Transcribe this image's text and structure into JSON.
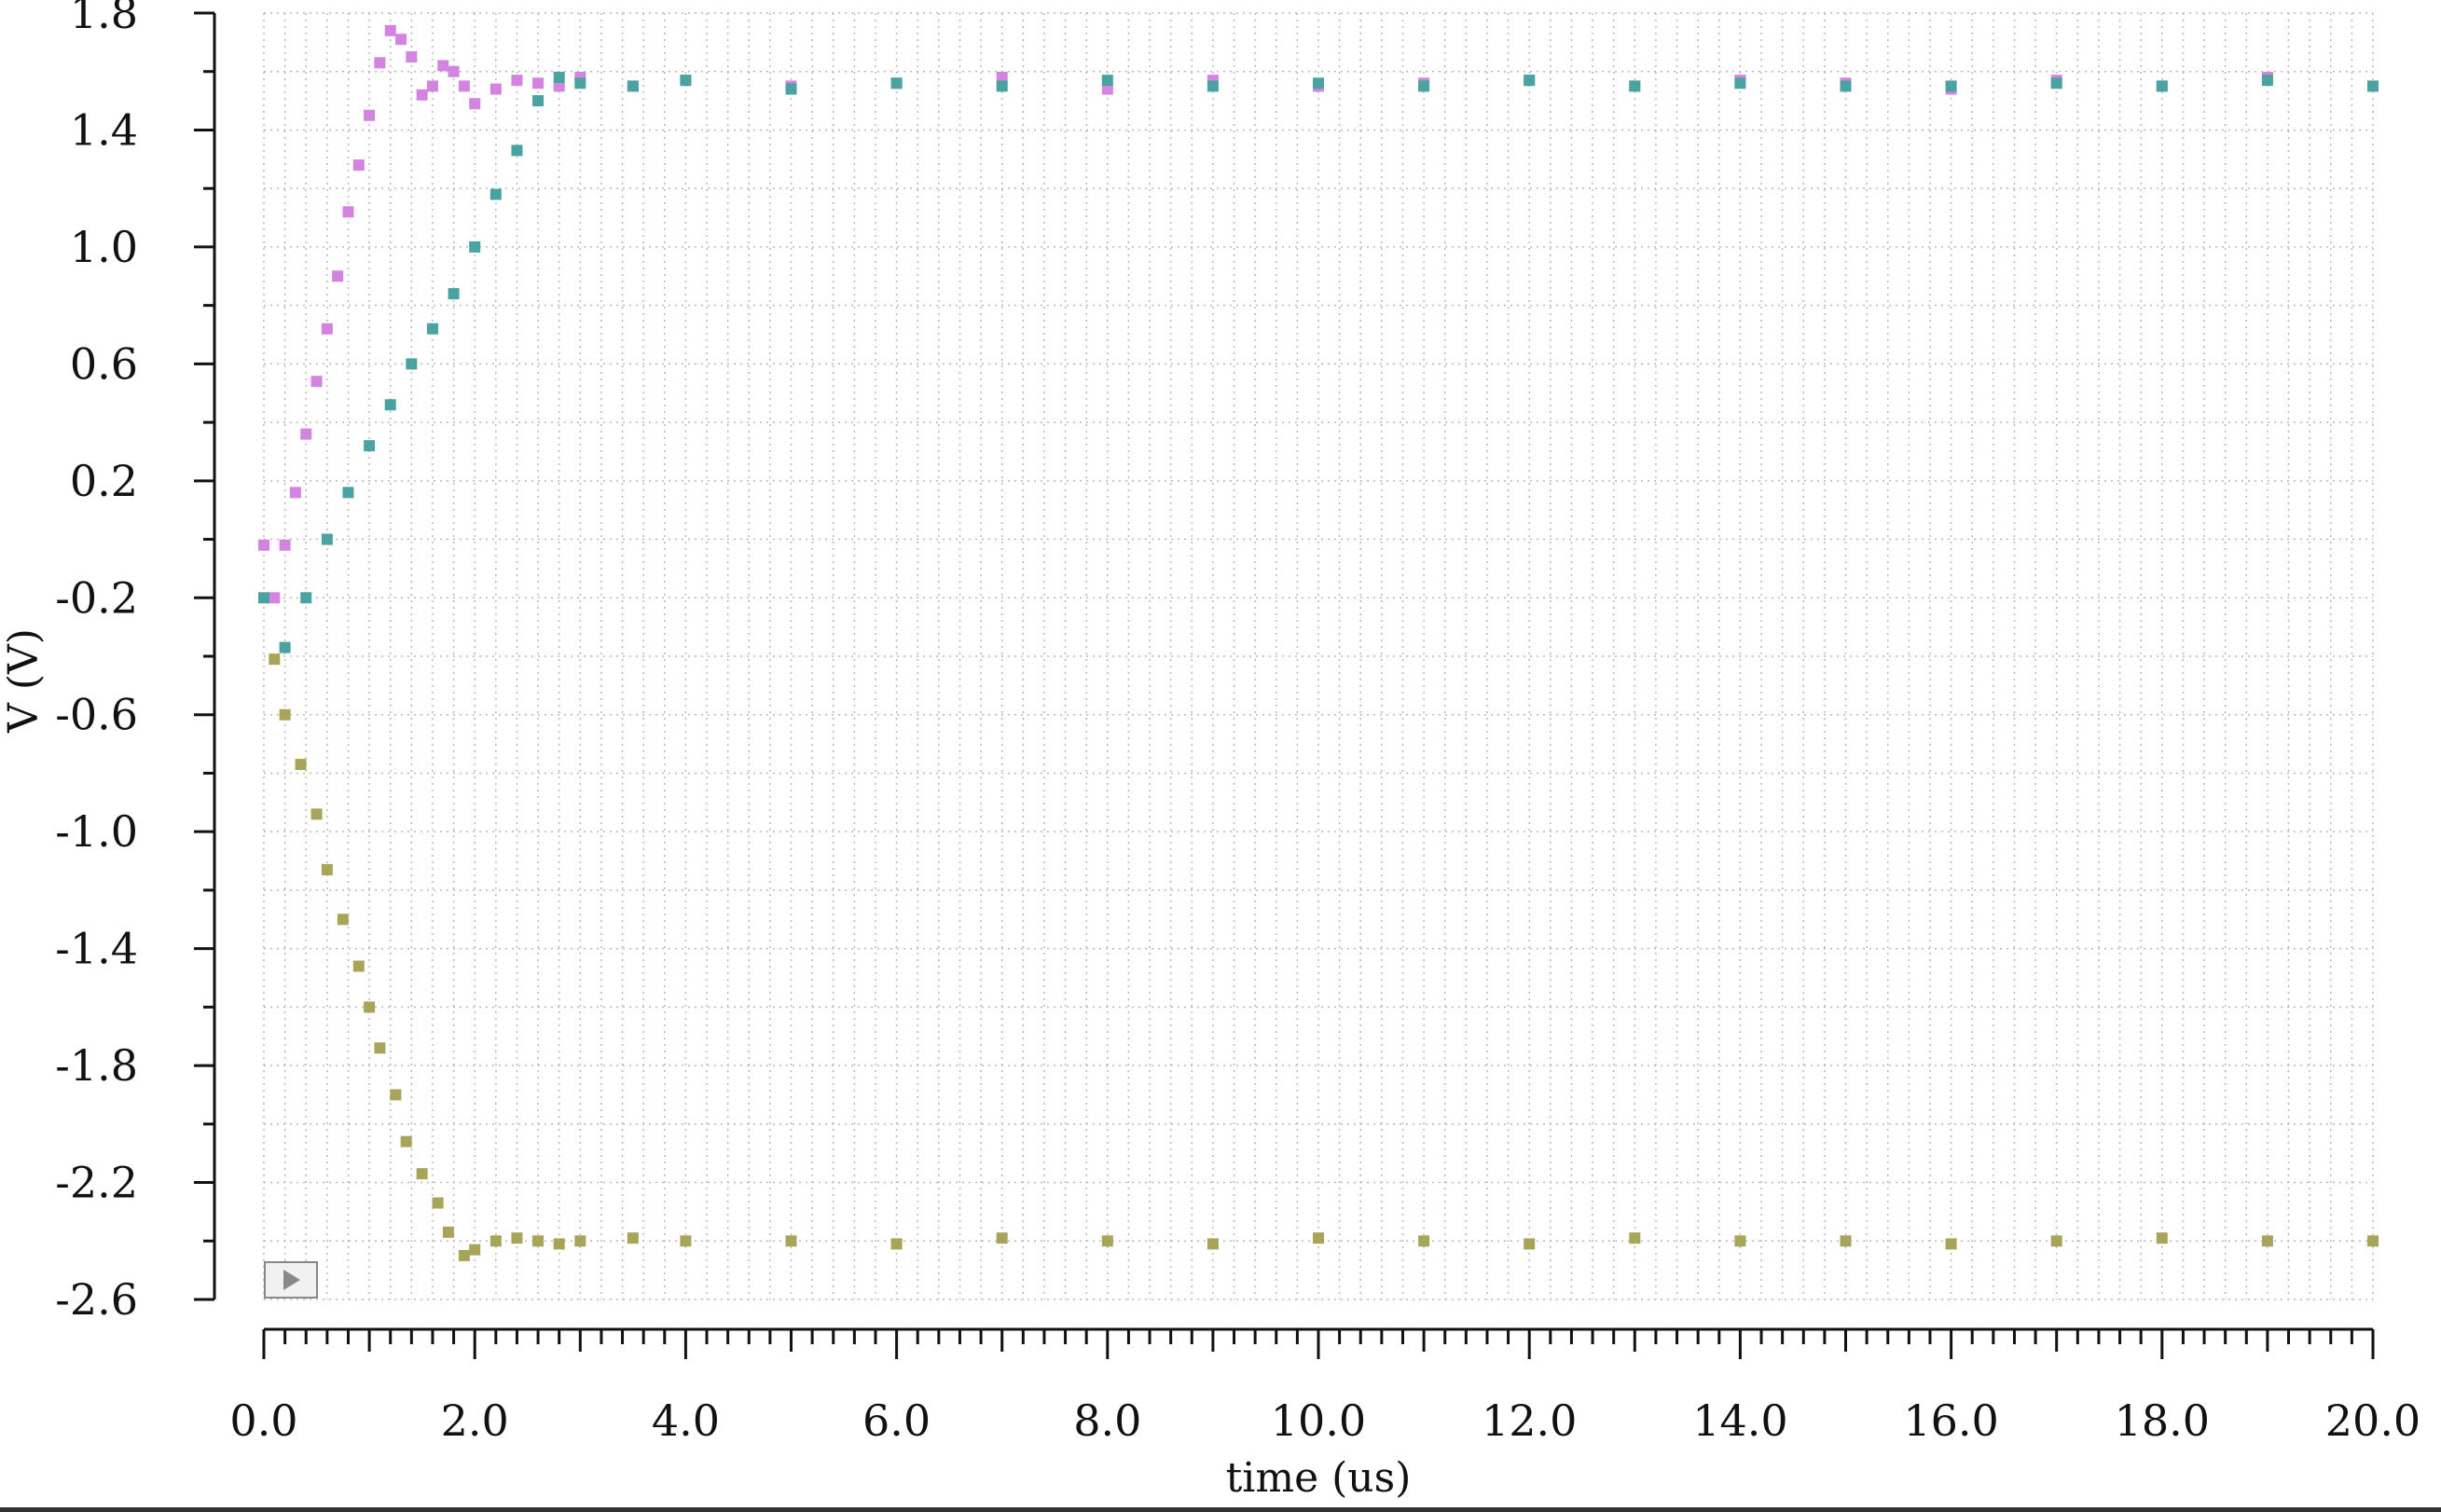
{
  "chart_data": {
    "type": "scatter",
    "xlabel": "time (us)",
    "ylabel": "V (V)",
    "xlim": [
      0,
      20
    ],
    "ylim": [
      -2.6,
      1.8
    ],
    "x_ticks": [
      0,
      2,
      4,
      6,
      8,
      10,
      12,
      14,
      16,
      18,
      20
    ],
    "x_tick_labels": [
      "0.0",
      "2.0",
      "4.0",
      "6.0",
      "8.0",
      "10.0",
      "12.0",
      "14.0",
      "16.0",
      "18.0",
      "20.0"
    ],
    "y_ticks": [
      1.8,
      1.4,
      1.0,
      0.6,
      0.2,
      -0.2,
      -0.6,
      -1.0,
      -1.4,
      -1.8,
      -2.2,
      -2.6
    ],
    "y_tick_labels": [
      "1.8",
      "1.4",
      "1.0",
      "0.6",
      "0.2",
      "-0.2",
      "-0.6",
      "-1.0",
      "-1.4",
      "-1.8",
      "-2.2",
      "-2.6"
    ],
    "grid": true,
    "legend": "none",
    "series": [
      {
        "color": "#d384e0",
        "marker": "square",
        "x": [
          0.0,
          0.1,
          0.2,
          0.3,
          0.4,
          0.5,
          0.6,
          0.7,
          0.8,
          0.9,
          1.0,
          1.1,
          1.2,
          1.3,
          1.4,
          1.5,
          1.6,
          1.7,
          1.8,
          1.9,
          2.0,
          2.2,
          2.4,
          2.6,
          2.8,
          3.0,
          3.5,
          4.0,
          5.0,
          6.0,
          7.0,
          8.0,
          9.0,
          10.0,
          11.0,
          12.0,
          13.0,
          14.0,
          15.0,
          16.0,
          17.0,
          18.0,
          19.0,
          20.0
        ],
        "y": [
          -0.02,
          -0.2,
          -0.02,
          0.16,
          0.36,
          0.54,
          0.72,
          0.9,
          1.12,
          1.28,
          1.45,
          1.63,
          1.74,
          1.71,
          1.65,
          1.52,
          1.55,
          1.62,
          1.6,
          1.55,
          1.49,
          1.54,
          1.57,
          1.56,
          1.55,
          1.58,
          1.55,
          1.57,
          1.55,
          1.56,
          1.58,
          1.54,
          1.57,
          1.55,
          1.56,
          1.57,
          1.55,
          1.57,
          1.56,
          1.54,
          1.57,
          1.55,
          1.58,
          1.55
        ]
      },
      {
        "color": "#4aa3a0",
        "marker": "square",
        "x": [
          0.0,
          0.2,
          0.4,
          0.6,
          0.8,
          1.0,
          1.2,
          1.4,
          1.6,
          1.8,
          2.0,
          2.2,
          2.4,
          2.6,
          2.8,
          3.0,
          3.5,
          4.0,
          5.0,
          6.0,
          7.0,
          8.0,
          9.0,
          10.0,
          11.0,
          12.0,
          13.0,
          14.0,
          15.0,
          16.0,
          17.0,
          18.0,
          19.0,
          20.0
        ],
        "y": [
          -0.2,
          -0.37,
          -0.2,
          0.0,
          0.16,
          0.32,
          0.46,
          0.6,
          0.72,
          0.84,
          1.0,
          1.18,
          1.33,
          1.5,
          1.58,
          1.56,
          1.55,
          1.57,
          1.54,
          1.56,
          1.55,
          1.57,
          1.55,
          1.56,
          1.55,
          1.57,
          1.55,
          1.56,
          1.55,
          1.55,
          1.56,
          1.55,
          1.57,
          1.55
        ]
      },
      {
        "color": "#a8a55a",
        "marker": "square",
        "x": [
          0.1,
          0.2,
          0.35,
          0.5,
          0.6,
          0.75,
          0.9,
          1.0,
          1.1,
          1.25,
          1.35,
          1.5,
          1.65,
          1.75,
          1.9,
          2.0,
          2.2,
          2.4,
          2.6,
          2.8,
          3.0,
          3.5,
          4.0,
          5.0,
          6.0,
          7.0,
          8.0,
          9.0,
          10.0,
          11.0,
          12.0,
          13.0,
          14.0,
          15.0,
          16.0,
          17.0,
          18.0,
          19.0,
          20.0
        ],
        "y": [
          -0.41,
          -0.6,
          -0.77,
          -0.94,
          -1.13,
          -1.3,
          -1.46,
          -1.6,
          -1.74,
          -1.9,
          -2.06,
          -2.17,
          -2.27,
          -2.37,
          -2.45,
          -2.43,
          -2.4,
          -2.39,
          -2.4,
          -2.41,
          -2.4,
          -2.39,
          -2.4,
          -2.4,
          -2.41,
          -2.39,
          -2.4,
          -2.41,
          -2.39,
          -2.4,
          -2.41,
          -2.39,
          -2.4,
          -2.4,
          -2.41,
          -2.4,
          -2.39,
          -2.4,
          -2.4
        ]
      }
    ]
  }
}
